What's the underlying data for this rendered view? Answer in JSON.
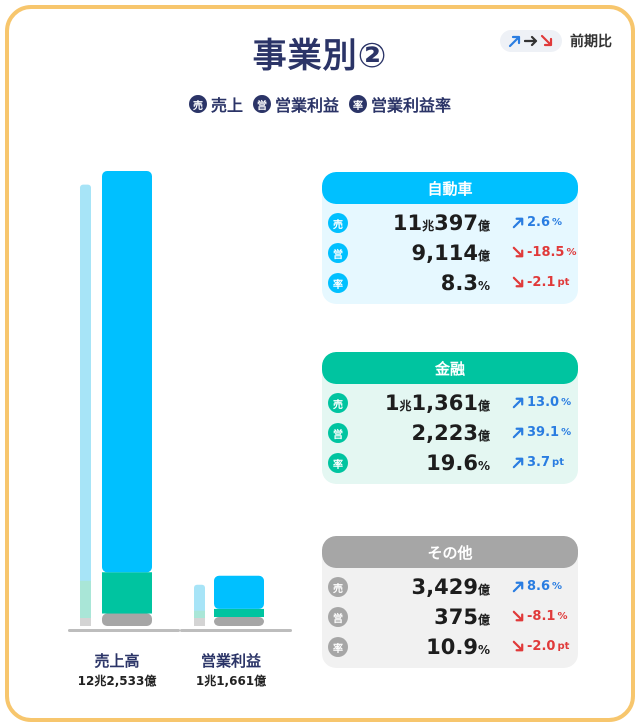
{
  "title": "事業別②",
  "prev_period_label": "前期比",
  "legend": {
    "sales": {
      "badge": "売",
      "label": "売上"
    },
    "op": {
      "badge": "営",
      "label": "営業利益"
    },
    "margin": {
      "badge": "率",
      "label": "営業利益率"
    }
  },
  "colors": {
    "auto": "#00c0ff",
    "finance": "#00c4a0",
    "other": "#a6a6a6",
    "navy": "#2b3467",
    "up": "#2a7de1",
    "down": "#e03a3a"
  },
  "chart_data": {
    "type": "bar",
    "categories": [
      "売上高",
      "営業利益"
    ],
    "category_values": [
      "12兆2,533億",
      "1兆1,661億"
    ],
    "units": "億円",
    "series": [
      {
        "name": "自動車",
        "values": [
          110397,
          9114
        ]
      },
      {
        "name": "金融",
        "values": [
          11361,
          2223
        ]
      },
      {
        "name": "その他",
        "values": [
          3429,
          375
        ]
      }
    ]
  },
  "segments": [
    {
      "id": "auto",
      "name": "自動車",
      "rows": [
        {
          "badge": "売",
          "value": "11",
          "unit1": "兆",
          "value2": "397",
          "unit2": "億",
          "dir": "up",
          "change": "2.6",
          "change_unit": "%"
        },
        {
          "badge": "営",
          "value": "9,114",
          "unit1": "億",
          "value2": "",
          "unit2": "",
          "dir": "down",
          "change": "-18.5",
          "change_unit": "%"
        },
        {
          "badge": "率",
          "value": "8.3",
          "unit1": "%",
          "value2": "",
          "unit2": "",
          "dir": "down",
          "change": "-2.1",
          "change_unit": "pt"
        }
      ]
    },
    {
      "id": "finance",
      "name": "金融",
      "rows": [
        {
          "badge": "売",
          "value": "1",
          "unit1": "兆",
          "value2": "1,361",
          "unit2": "億",
          "dir": "up",
          "change": "13.0",
          "change_unit": "%"
        },
        {
          "badge": "営",
          "value": "2,223",
          "unit1": "億",
          "value2": "",
          "unit2": "",
          "dir": "up",
          "change": "39.1",
          "change_unit": "%"
        },
        {
          "badge": "率",
          "value": "19.6",
          "unit1": "%",
          "value2": "",
          "unit2": "",
          "dir": "up",
          "change": "3.7",
          "change_unit": "pt"
        }
      ]
    },
    {
      "id": "other",
      "name": "その他",
      "rows": [
        {
          "badge": "売",
          "value": "3,429",
          "unit1": "億",
          "value2": "",
          "unit2": "",
          "dir": "up",
          "change": "8.6",
          "change_unit": "%"
        },
        {
          "badge": "営",
          "value": "375",
          "unit1": "億",
          "value2": "",
          "unit2": "",
          "dir": "down",
          "change": "-8.1",
          "change_unit": "%"
        },
        {
          "badge": "率",
          "value": "10.9",
          "unit1": "%",
          "value2": "",
          "unit2": "",
          "dir": "down",
          "change": "-2.0",
          "change_unit": "pt"
        }
      ]
    }
  ]
}
